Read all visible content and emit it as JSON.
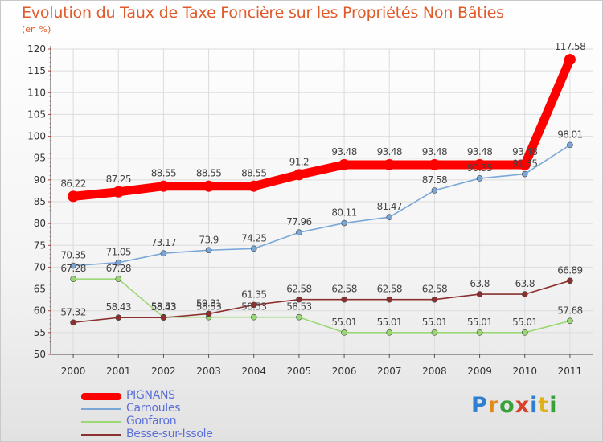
{
  "title": "Evolution du Taux de Taxe Foncière sur les Propriétés Non Bâties",
  "unit_label": "(en %)",
  "logo": {
    "letters": [
      "P",
      "r",
      "o",
      "x",
      "i",
      "t",
      "i"
    ],
    "colors": [
      "#2f7fd0",
      "#e08a1a",
      "#3aa03a",
      "#d8402a",
      "#2f7fd0",
      "#e0b01a",
      "#3aa03a"
    ]
  },
  "chart_data": {
    "type": "line",
    "x": [
      "2000",
      "2001",
      "2002",
      "2003",
      "2004",
      "2005",
      "2006",
      "2007",
      "2008",
      "2009",
      "2010",
      "2011"
    ],
    "ylim": [
      50,
      120
    ],
    "yticks": [
      "50",
      "55",
      "60",
      "65",
      "70",
      "75",
      "80",
      "85",
      "90",
      "95",
      "100",
      "105",
      "110",
      "115",
      "120"
    ],
    "grid": true,
    "legend_position": "bottom-left",
    "series": [
      {
        "name": "PIGNANS",
        "color": "#ff0000",
        "values": [
          86.22,
          87.25,
          88.55,
          88.55,
          88.55,
          91.2,
          93.48,
          93.48,
          93.48,
          93.48,
          93.48,
          117.58
        ],
        "labels": [
          "86.22",
          "87.25",
          "88.55",
          "88.55",
          "88.55",
          "91.2",
          "93.48",
          "93.48",
          "93.48",
          "93.48",
          "93.48",
          "117.58"
        ]
      },
      {
        "name": "Carnoules",
        "color": "#7aa7d8",
        "values": [
          70.35,
          71.05,
          73.17,
          73.9,
          74.25,
          77.96,
          80.11,
          81.47,
          87.58,
          90.35,
          91.35,
          98.01
        ],
        "labels": [
          "70.35",
          "71.05",
          "73.17",
          "73.9",
          "74.25",
          "77.96",
          "80.11",
          "81.47",
          "87.58",
          "90.35",
          "91.35",
          "98.01"
        ]
      },
      {
        "name": "Gonfaron",
        "color": "#9ad873",
        "values": [
          67.28,
          67.28,
          58.53,
          58.53,
          58.53,
          58.53,
          55.01,
          55.01,
          55.01,
          55.01,
          55.01,
          57.68
        ],
        "labels": [
          "67.28",
          "67.28",
          "58.53",
          "58.53",
          "58.53",
          "58.53",
          "55.01",
          "55.01",
          "55.01",
          "55.01",
          "55.01",
          "57.68"
        ]
      },
      {
        "name": "Besse-sur-Issole",
        "color": "#8b2f2f",
        "values": [
          57.32,
          58.43,
          58.43,
          59.31,
          61.35,
          62.58,
          62.58,
          62.58,
          62.58,
          63.8,
          63.8,
          66.89
        ],
        "labels": [
          "57.32",
          "58.43",
          "58.43",
          "59.31",
          "61.35",
          "62.58",
          "62.58",
          "62.58",
          "62.58",
          "63.8",
          "63.8",
          "66.89"
        ]
      }
    ]
  }
}
